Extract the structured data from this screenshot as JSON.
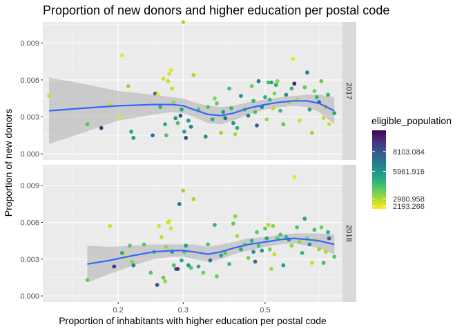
{
  "chart_data": {
    "type": "scatter",
    "title": "Proportion of new donors and higher education per postal code",
    "xlabel": "Proportion of inhabitants with higher education per postal code",
    "ylabel": "Proportion of new donors",
    "x_scale": "log10",
    "xlim": [
      0.125,
      0.81
    ],
    "ylim": [
      -0.0005,
      0.0107
    ],
    "x_ticks": [
      0.2,
      0.3,
      0.5
    ],
    "x_tick_labels": [
      "0.2",
      "0.3",
      "0.5"
    ],
    "y_ticks": [
      0,
      0.003,
      0.006,
      0.009
    ],
    "y_tick_labels": [
      "0.000",
      "0.003",
      "0.006",
      "0.009"
    ],
    "grid": true,
    "color_scale": {
      "title": "eligible_population",
      "palette": "viridis",
      "range": [
        1900,
        10400
      ],
      "labels": [
        {
          "value": 8103.084,
          "label": "8103.084"
        },
        {
          "value": 5961.916,
          "label": "5961.916"
        },
        {
          "value": 2980.958,
          "label": "2980.958"
        },
        {
          "value": 2193.266,
          "label": "2193.266"
        }
      ],
      "colors": [
        "#fde725",
        "#b5de2b",
        "#6ece58",
        "#35b779",
        "#1f9e89",
        "#26828e",
        "#31688e",
        "#3e4989",
        "#482878",
        "#440154"
      ]
    },
    "smooth_color": "#3366ff",
    "band_color": "#999999",
    "facets": [
      {
        "label": "2017",
        "points": [
          [
            0.13,
            0.0047,
            2600
          ],
          [
            0.165,
            0.0024,
            4200
          ],
          [
            0.18,
            0.0021,
            9000
          ],
          [
            0.19,
            0.004,
            2700
          ],
          [
            0.202,
            0.003,
            2300
          ],
          [
            0.205,
            0.008,
            2200
          ],
          [
            0.213,
            0.0055,
            3300
          ],
          [
            0.217,
            0.0018,
            5300
          ],
          [
            0.22,
            0.0013,
            5600
          ],
          [
            0.248,
            0.0015,
            7500
          ],
          [
            0.252,
            0.0049,
            7200
          ],
          [
            0.256,
            0.0048,
            2300
          ],
          [
            0.26,
            0.0038,
            4800
          ],
          [
            0.265,
            0.0061,
            2500
          ],
          [
            0.268,
            0.0024,
            5200
          ],
          [
            0.27,
            0.0015,
            4300
          ],
          [
            0.273,
            0.0059,
            2600
          ],
          [
            0.275,
            0.0065,
            2400
          ],
          [
            0.278,
            0.0068,
            2200
          ],
          [
            0.28,
            0.0053,
            2700
          ],
          [
            0.283,
            0.0042,
            3300
          ],
          [
            0.286,
            0.0029,
            6000
          ],
          [
            0.29,
            0.0025,
            4400
          ],
          [
            0.295,
            0.0031,
            8000
          ],
          [
            0.297,
            0.0036,
            5400
          ],
          [
            0.3,
            0.0107,
            3100
          ],
          [
            0.302,
            0.0018,
            5500
          ],
          [
            0.305,
            0.0013,
            8500
          ],
          [
            0.31,
            0.0027,
            5800
          ],
          [
            0.315,
            0.0022,
            6800
          ],
          [
            0.32,
            0.0064,
            3100
          ],
          [
            0.33,
            0.0036,
            4200
          ],
          [
            0.345,
            0.0014,
            6200
          ],
          [
            0.35,
            0.0038,
            4200
          ],
          [
            0.36,
            0.0028,
            5200
          ],
          [
            0.365,
            0.0045,
            3500
          ],
          [
            0.37,
            0.0041,
            4000
          ],
          [
            0.38,
            0.0017,
            3200
          ],
          [
            0.385,
            0.0034,
            5600
          ],
          [
            0.39,
            0.0029,
            7500
          ],
          [
            0.4,
            0.0053,
            4500
          ],
          [
            0.405,
            0.0037,
            4800
          ],
          [
            0.41,
            0.0025,
            6000
          ],
          [
            0.415,
            0.0016,
            3100
          ],
          [
            0.42,
            0.0021,
            5000
          ],
          [
            0.43,
            0.0047,
            5900
          ],
          [
            0.44,
            0.0036,
            4400
          ],
          [
            0.45,
            0.0031,
            6700
          ],
          [
            0.46,
            0.0055,
            3800
          ],
          [
            0.465,
            0.0043,
            4800
          ],
          [
            0.47,
            0.0034,
            4300
          ],
          [
            0.475,
            0.0023,
            7900
          ],
          [
            0.48,
            0.0059,
            7000
          ],
          [
            0.49,
            0.0038,
            6300
          ],
          [
            0.5,
            0.0046,
            5000
          ],
          [
            0.505,
            0.0028,
            3300
          ],
          [
            0.51,
            0.0058,
            4400
          ],
          [
            0.515,
            0.0044,
            4700
          ],
          [
            0.52,
            0.0058,
            5600
          ],
          [
            0.525,
            0.0037,
            2800
          ],
          [
            0.53,
            0.0049,
            3600
          ],
          [
            0.535,
            0.0056,
            5300
          ],
          [
            0.54,
            0.0059,
            3300
          ],
          [
            0.55,
            0.0035,
            4600
          ],
          [
            0.56,
            0.0024,
            4000
          ],
          [
            0.57,
            0.0048,
            6100
          ],
          [
            0.58,
            0.0042,
            3200
          ],
          [
            0.59,
            0.0053,
            4800
          ],
          [
            0.595,
            0.0077,
            2150
          ],
          [
            0.6,
            0.0057,
            9600
          ],
          [
            0.61,
            0.0044,
            3100
          ],
          [
            0.62,
            0.0027,
            2500
          ],
          [
            0.64,
            0.0054,
            4000
          ],
          [
            0.65,
            0.0066,
            6700
          ],
          [
            0.66,
            0.0036,
            5300
          ],
          [
            0.67,
            0.0017,
            3200
          ],
          [
            0.68,
            0.0051,
            3800
          ],
          [
            0.69,
            0.0046,
            5000
          ],
          [
            0.7,
            0.0042,
            7800
          ],
          [
            0.71,
            0.0059,
            3900
          ],
          [
            0.72,
            0.0029,
            2600
          ],
          [
            0.73,
            0.0038,
            3300
          ],
          [
            0.74,
            0.0048,
            4800
          ],
          [
            0.745,
            0.0024,
            2600
          ],
          [
            0.77,
            0.0033,
            5300
          ]
        ],
        "smooth": [
          [
            0.13,
            0.0035
          ],
          [
            0.16,
            0.0037
          ],
          [
            0.2,
            0.0039
          ],
          [
            0.25,
            0.004
          ],
          [
            0.28,
            0.004
          ],
          [
            0.3,
            0.0039
          ],
          [
            0.32,
            0.0036
          ],
          [
            0.35,
            0.0032
          ],
          [
            0.38,
            0.0031
          ],
          [
            0.41,
            0.0033
          ],
          [
            0.45,
            0.0037
          ],
          [
            0.5,
            0.004
          ],
          [
            0.55,
            0.0042
          ],
          [
            0.6,
            0.0043
          ],
          [
            0.65,
            0.0043
          ],
          [
            0.7,
            0.0041
          ],
          [
            0.77,
            0.0035
          ]
        ],
        "band_halfwidth": [
          0.0027,
          0.002,
          0.0012,
          0.0008,
          0.0006,
          0.0006,
          0.0006,
          0.0007,
          0.0007,
          0.0006,
          0.0005,
          0.0004,
          0.0004,
          0.0004,
          0.0005,
          0.0007,
          0.0011
        ]
      },
      {
        "label": "2018",
        "points": [
          [
            0.165,
            0.0013,
            4000
          ],
          [
            0.19,
            0.0057,
            2500
          ],
          [
            0.195,
            0.0024,
            9000
          ],
          [
            0.205,
            0.0035,
            5200
          ],
          [
            0.21,
            0.0032,
            2500
          ],
          [
            0.215,
            0.0041,
            4000
          ],
          [
            0.218,
            0.0028,
            3500
          ],
          [
            0.22,
            0.0025,
            6500
          ],
          [
            0.235,
            0.0042,
            4200
          ],
          [
            0.245,
            0.0019,
            4200
          ],
          [
            0.25,
            0.0036,
            4500
          ],
          [
            0.255,
            0.0009,
            8200
          ],
          [
            0.258,
            0.0057,
            2400
          ],
          [
            0.262,
            0.0048,
            2700
          ],
          [
            0.265,
            0.0015,
            4000
          ],
          [
            0.268,
            0.0012,
            3300
          ],
          [
            0.27,
            0.004,
            3300
          ],
          [
            0.273,
            0.006,
            2600
          ],
          [
            0.275,
            0.0061,
            2300
          ],
          [
            0.278,
            0.0055,
            2400
          ],
          [
            0.28,
            0.0036,
            5400
          ],
          [
            0.283,
            0.0025,
            4300
          ],
          [
            0.287,
            0.0022,
            7800
          ],
          [
            0.29,
            0.0022,
            9200
          ],
          [
            0.293,
            0.0075,
            7100
          ],
          [
            0.297,
            0.0029,
            5300
          ],
          [
            0.3,
            0.0086,
            3200
          ],
          [
            0.302,
            0.0036,
            4200
          ],
          [
            0.305,
            0.0041,
            5500
          ],
          [
            0.31,
            0.0025,
            5900
          ],
          [
            0.315,
            0.0023,
            4200
          ],
          [
            0.32,
            0.0079,
            3100
          ],
          [
            0.33,
            0.0024,
            5200
          ],
          [
            0.34,
            0.0019,
            3800
          ],
          [
            0.35,
            0.0042,
            4400
          ],
          [
            0.355,
            0.0029,
            7000
          ],
          [
            0.365,
            0.0058,
            5000
          ],
          [
            0.37,
            0.0016,
            3800
          ],
          [
            0.38,
            0.0033,
            5500
          ],
          [
            0.39,
            0.0035,
            4200
          ],
          [
            0.4,
            0.0026,
            4600
          ],
          [
            0.41,
            0.0059,
            4000
          ],
          [
            0.415,
            0.0065,
            3400
          ],
          [
            0.42,
            0.0049,
            3000
          ],
          [
            0.43,
            0.0038,
            5200
          ],
          [
            0.44,
            0.0042,
            4000
          ],
          [
            0.45,
            0.0031,
            3700
          ],
          [
            0.46,
            0.0045,
            4800
          ],
          [
            0.465,
            0.0036,
            6000
          ],
          [
            0.47,
            0.0028,
            7300
          ],
          [
            0.475,
            0.0052,
            4000
          ],
          [
            0.48,
            0.0041,
            4500
          ],
          [
            0.49,
            0.0037,
            5900
          ],
          [
            0.5,
            0.0055,
            3800
          ],
          [
            0.505,
            0.0047,
            5400
          ],
          [
            0.51,
            0.0058,
            2900
          ],
          [
            0.515,
            0.0038,
            3700
          ],
          [
            0.52,
            0.0022,
            3200
          ],
          [
            0.525,
            0.0057,
            3500
          ],
          [
            0.53,
            0.0034,
            2600
          ],
          [
            0.54,
            0.0047,
            4000
          ],
          [
            0.55,
            0.005,
            4300
          ],
          [
            0.56,
            0.0025,
            5500
          ],
          [
            0.57,
            0.0048,
            4700
          ],
          [
            0.58,
            0.0046,
            6000
          ],
          [
            0.59,
            0.0041,
            3300
          ],
          [
            0.6,
            0.0097,
            2150
          ],
          [
            0.61,
            0.0056,
            4200
          ],
          [
            0.62,
            0.0044,
            3300
          ],
          [
            0.63,
            0.0035,
            4900
          ],
          [
            0.64,
            0.0063,
            5400
          ],
          [
            0.65,
            0.0047,
            3700
          ],
          [
            0.66,
            0.0042,
            6000
          ],
          [
            0.67,
            0.0027,
            2600
          ],
          [
            0.68,
            0.0054,
            4400
          ],
          [
            0.69,
            0.0045,
            3000
          ],
          [
            0.7,
            0.0038,
            3200
          ],
          [
            0.71,
            0.0056,
            3700
          ],
          [
            0.72,
            0.0027,
            4500
          ],
          [
            0.73,
            0.0036,
            3000
          ],
          [
            0.74,
            0.0052,
            5000
          ],
          [
            0.745,
            0.0047,
            7500
          ],
          [
            0.77,
            0.0032,
            4200
          ]
        ],
        "smooth": [
          [
            0.165,
            0.0026
          ],
          [
            0.19,
            0.0029
          ],
          [
            0.22,
            0.0033
          ],
          [
            0.25,
            0.0036
          ],
          [
            0.28,
            0.0037
          ],
          [
            0.3,
            0.0037
          ],
          [
            0.32,
            0.0036
          ],
          [
            0.35,
            0.0034
          ],
          [
            0.38,
            0.0036
          ],
          [
            0.41,
            0.0039
          ],
          [
            0.45,
            0.0042
          ],
          [
            0.5,
            0.0044
          ],
          [
            0.55,
            0.0046
          ],
          [
            0.6,
            0.0047
          ],
          [
            0.65,
            0.0046
          ],
          [
            0.7,
            0.0045
          ],
          [
            0.77,
            0.0042
          ]
        ],
        "band_halfwidth": [
          0.0015,
          0.0011,
          0.0008,
          0.0006,
          0.0005,
          0.0005,
          0.0006,
          0.0006,
          0.0006,
          0.0005,
          0.0005,
          0.0004,
          0.0004,
          0.0004,
          0.0005,
          0.0006,
          0.0008
        ]
      }
    ]
  }
}
